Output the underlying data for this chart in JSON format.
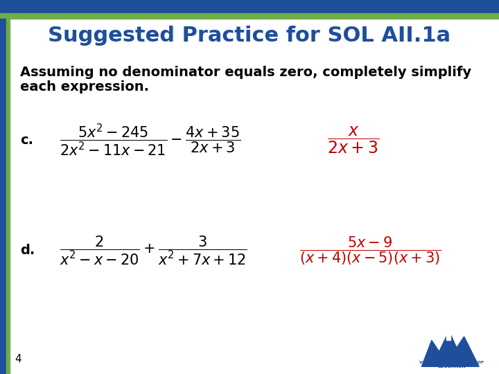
{
  "title": "Suggested Practice for SOL AII.1a",
  "title_color": "#1F4E9B",
  "title_fontsize": 22,
  "subtitle_line1": "Assuming no denominator equals zero, completely simplify",
  "subtitle_line2": "each expression.",
  "subtitle_fontsize": 14,
  "bg_color": "#FFFFFF",
  "blue_color": "#1F4E9B",
  "green_color": "#70AD47",
  "problem_c_label": "c.",
  "problem_c_expr": "$\\dfrac{5x^2 - 245}{2x^2 - 11x - 21} - \\dfrac{4x + 35}{2x + 3}$",
  "problem_c_answer": "$\\dfrac{x}{2x + 3}$",
  "problem_d_label": "d.",
  "problem_d_expr": "$\\dfrac{2}{x^2 - x - 20} + \\dfrac{3}{x^2 + 7x + 12}$",
  "problem_d_answer": "$\\dfrac{5x - 9}{(x+4)(x-5)(x+3)}$",
  "answer_color": "#C00000",
  "label_fontsize": 14,
  "expr_fontsize": 15,
  "answer_fontsize": 15,
  "page_number": "4",
  "page_fontsize": 11
}
